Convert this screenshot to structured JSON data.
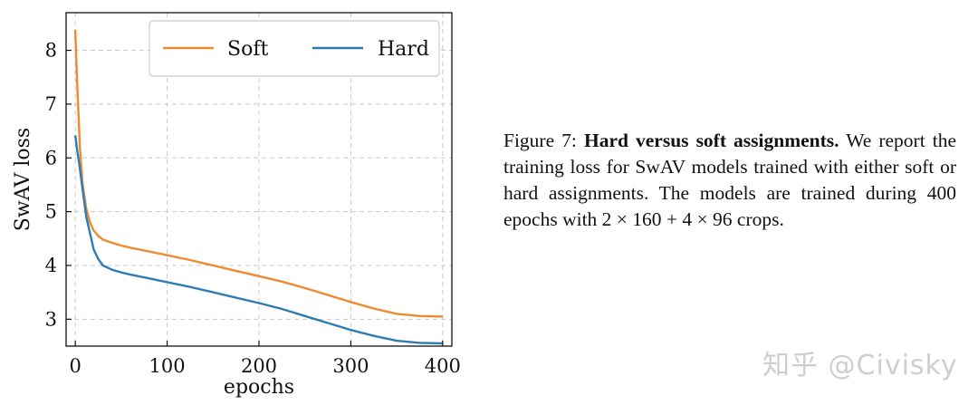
{
  "chart_data": {
    "type": "line",
    "xlabel": "epochs",
    "ylabel": "SwAV loss",
    "xlim": [
      -10,
      410
    ],
    "ylim": [
      2.5,
      8.7
    ],
    "xticks": [
      0,
      100,
      200,
      300,
      400
    ],
    "yticks": [
      3,
      4,
      5,
      6,
      7,
      8
    ],
    "grid": true,
    "legend_position": "top-right",
    "series": [
      {
        "name": "Soft",
        "color": "#ee8a2f",
        "x": [
          0,
          2,
          5,
          8,
          12,
          16,
          20,
          25,
          30,
          40,
          50,
          60,
          80,
          100,
          125,
          150,
          175,
          200,
          225,
          250,
          275,
          300,
          325,
          350,
          375,
          400
        ],
        "y": [
          8.38,
          7.4,
          6.2,
          5.5,
          5.05,
          4.8,
          4.65,
          4.55,
          4.48,
          4.42,
          4.37,
          4.33,
          4.26,
          4.19,
          4.1,
          4.0,
          3.9,
          3.8,
          3.7,
          3.58,
          3.45,
          3.32,
          3.2,
          3.1,
          3.06,
          3.05
        ]
      },
      {
        "name": "Hard",
        "color": "#2f7cb3",
        "x": [
          0,
          2,
          5,
          8,
          12,
          16,
          20,
          25,
          30,
          40,
          50,
          60,
          80,
          100,
          125,
          150,
          175,
          200,
          225,
          250,
          275,
          300,
          325,
          350,
          375,
          400
        ],
        "y": [
          6.42,
          6.15,
          5.8,
          5.4,
          4.9,
          4.6,
          4.3,
          4.12,
          4.0,
          3.92,
          3.87,
          3.83,
          3.76,
          3.69,
          3.6,
          3.5,
          3.4,
          3.3,
          3.19,
          3.06,
          2.93,
          2.8,
          2.69,
          2.6,
          2.56,
          2.55
        ]
      }
    ]
  },
  "caption": {
    "prefix": "Figure 7: ",
    "bold": "Hard versus soft assignments.",
    "body": " We report the training loss for SwAV models trained with either soft or hard assignments. The models are trained during 400 epochs with 2 × 160 + 4 × 96 crops."
  },
  "watermark": "知乎 @Civisky"
}
